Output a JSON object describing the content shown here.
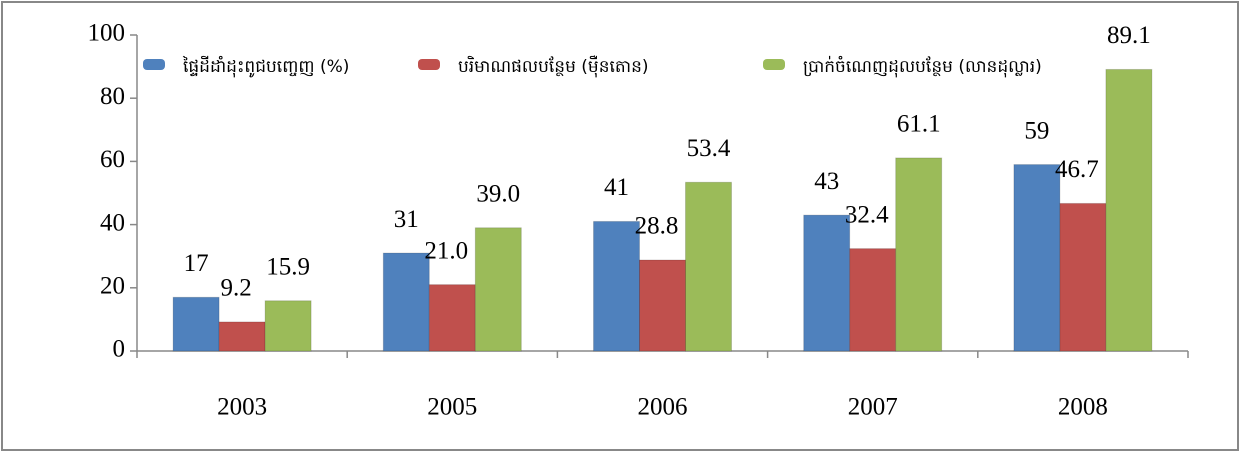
{
  "chart_data": {
    "type": "bar",
    "categories": [
      "2003",
      "2005",
      "2006",
      "2007",
      "2008"
    ],
    "series": [
      {
        "name": "ផ្ទៃដីដាំដុះពូជបញ្ចេញ (%)",
        "color": "#4f81bd",
        "values": [
          17,
          31,
          41,
          43,
          59
        ]
      },
      {
        "name": "បរិមាណផលបន្ថែម (ម៉ឺនតោន)",
        "color": "#c0504d",
        "values": [
          9.2,
          21.0,
          28.8,
          32.4,
          46.7
        ],
        "value_labels": [
          "9.2",
          "21.0",
          "28.8",
          "32.4",
          "46.7"
        ]
      },
      {
        "name": "ប្រាក់ចំណេញដុលបន្ថែម (លានដុល្លារ)",
        "color": "#9bbb59",
        "values": [
          15.9,
          39.0,
          53.4,
          61.1,
          89.1
        ],
        "value_labels": [
          "15.9",
          "39.0",
          "53.4",
          "61.1",
          "89.1"
        ]
      }
    ],
    "ylim": [
      0,
      100
    ],
    "yticks": [
      0,
      20,
      40,
      60,
      80,
      100
    ],
    "legend": "top"
  }
}
